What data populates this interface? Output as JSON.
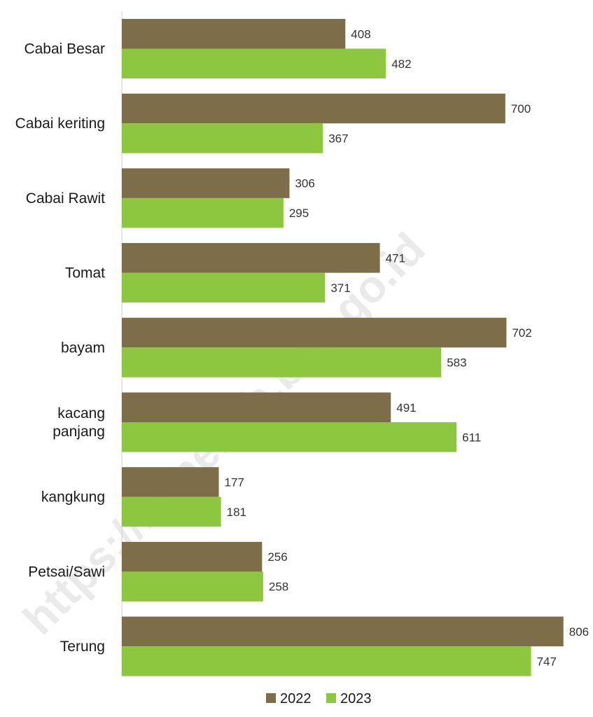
{
  "chart_data": {
    "type": "bar",
    "orientation": "horizontal",
    "categories": [
      "Cabai Besar",
      "Cabai keriting",
      "Cabai Rawit",
      "Tomat",
      "bayam",
      "kacang panjang",
      "kangkung",
      "Petsai/Sawi",
      "Terung"
    ],
    "series": [
      {
        "name": "2022",
        "color": "#7d6d48",
        "values": [
          408,
          700,
          306,
          471,
          702,
          491,
          177,
          256,
          806
        ]
      },
      {
        "name": "2023",
        "color": "#8dc63f",
        "values": [
          482,
          367,
          295,
          371,
          583,
          611,
          181,
          258,
          747
        ]
      }
    ],
    "xlim": [
      0,
      860
    ],
    "grid": false,
    "legend_position": "bottom"
  },
  "watermark": "https://bonekab.bps.go.id"
}
